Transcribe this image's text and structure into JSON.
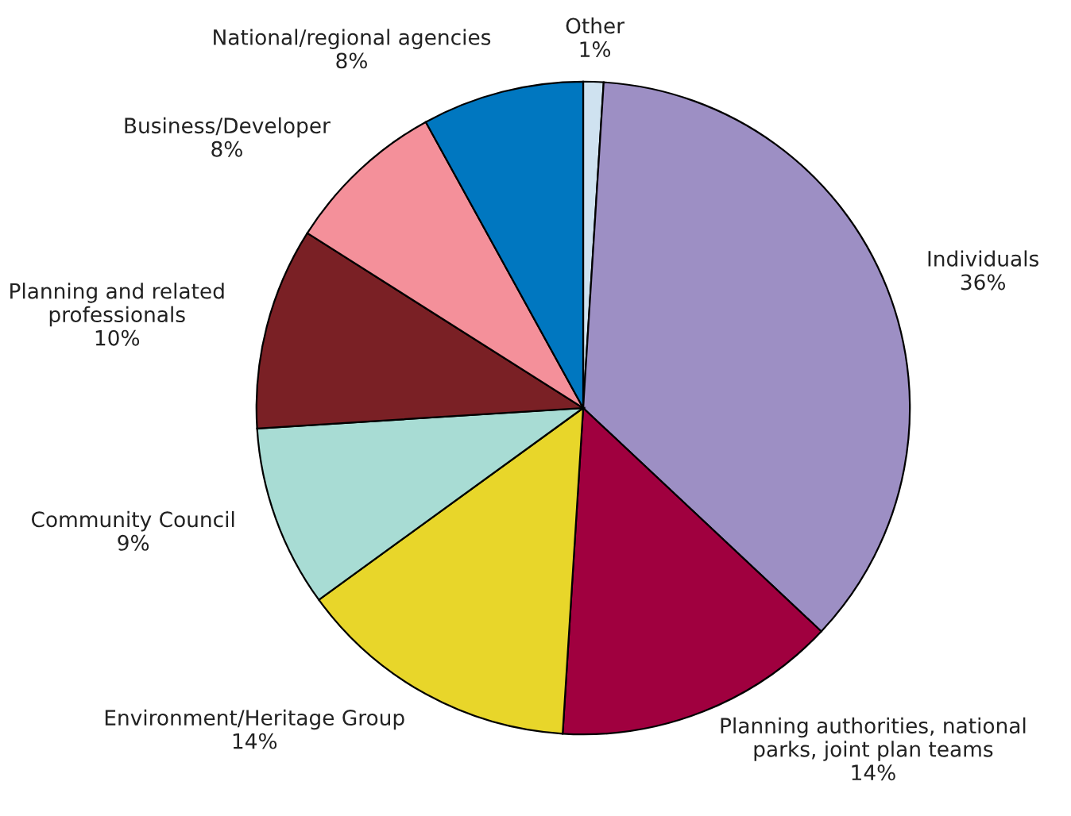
{
  "chart_data": {
    "type": "pie",
    "categories": [
      "Other",
      "Individuals",
      "Planning authorities, national\nparks, joint plan teams",
      "Environment/Heritage Group",
      "Community Council",
      "Planning and related\nprofessionals",
      "Business/Developer",
      "National/regional agencies"
    ],
    "values": [
      1,
      36,
      14,
      14,
      9,
      10,
      8,
      8
    ],
    "value_labels": [
      "1%",
      "36%",
      "14%",
      "14%",
      "9%",
      "10%",
      "8%",
      "8%"
    ],
    "colors": [
      "#cfe2f0",
      "#9d8fc4",
      "#a0003f",
      "#e8d62a",
      "#a8dcd4",
      "#7a2025",
      "#f4909a",
      "#0077c0"
    ],
    "legend": false
  }
}
